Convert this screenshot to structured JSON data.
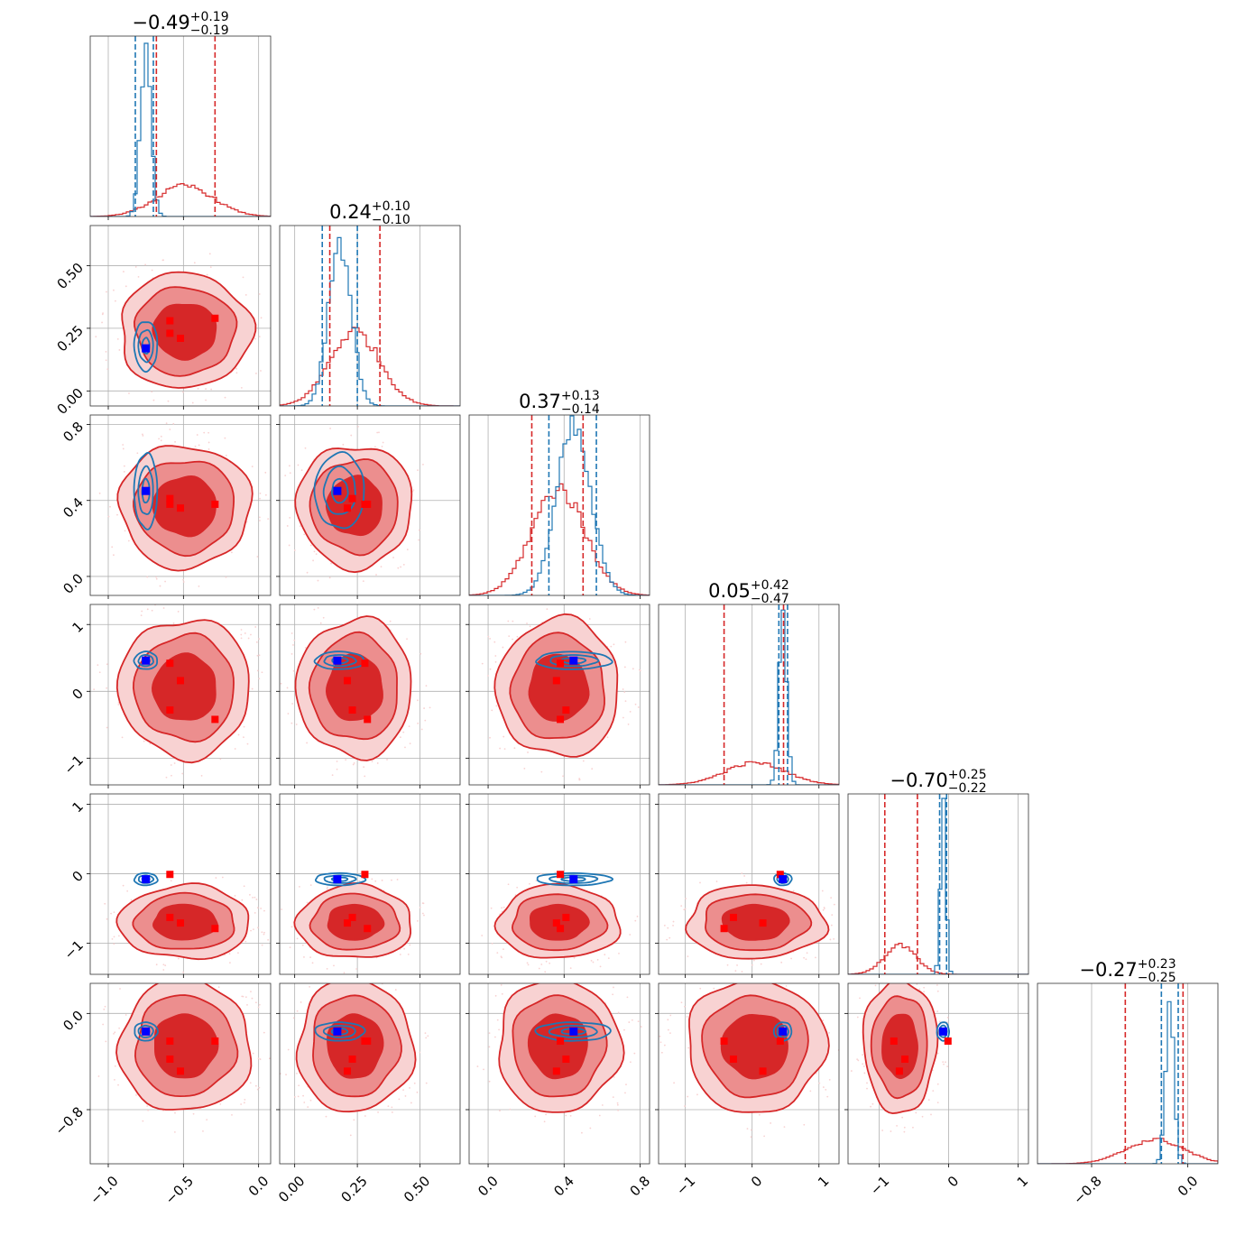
{
  "colors": {
    "red": "#d62728",
    "red_fill_inner": "#d62728",
    "red_fill_outer": "#ec8e8e",
    "red_fill_outermost": "#f8d2d2",
    "blue": "#1f77b4",
    "marker_blue": "#0000ff",
    "marker_red": "#ff0000",
    "grid": "#b0b0b0",
    "frame": "#000000"
  },
  "chart_data": {
    "type": "corner",
    "grid": true,
    "n_params": 6,
    "titles": [
      {
        "value": "−0.49",
        "plus": "+0.19",
        "minus": "−0.19"
      },
      {
        "value": "0.24",
        "plus": "+0.10",
        "minus": "−0.10"
      },
      {
        "value": "0.37",
        "plus": "+0.13",
        "minus": "−0.14"
      },
      {
        "value": "0.05",
        "plus": "+0.42",
        "minus": "−0.47"
      },
      {
        "value": "−0.70",
        "plus": "+0.25",
        "minus": "−0.22"
      },
      {
        "value": "−0.27",
        "plus": "+0.23",
        "minus": "−0.25"
      }
    ],
    "params": [
      {
        "range": [
          -1.12,
          0.08
        ],
        "ticks": [
          -1.0,
          -0.5,
          0.0
        ],
        "tick_labels": [
          "−1.0",
          "−0.5",
          "0.0"
        ],
        "red": {
          "mean": -0.49,
          "sd": 0.19,
          "q": [
            -0.68,
            -0.29
          ]
        },
        "blue": {
          "mean": -0.75,
          "sd": 0.035,
          "q": [
            -0.82,
            -0.7
          ]
        }
      },
      {
        "range": [
          -0.06,
          0.66
        ],
        "ticks": [
          0.0,
          0.25,
          0.5
        ],
        "tick_labels": [
          "0.00",
          "0.25",
          "0.50"
        ],
        "red": {
          "mean": 0.24,
          "sd": 0.1,
          "q": [
            0.14,
            0.34
          ]
        },
        "blue": {
          "mean": 0.18,
          "sd": 0.045,
          "q": [
            0.11,
            0.25
          ]
        }
      },
      {
        "range": [
          -0.1,
          0.85
        ],
        "ticks": [
          0.0,
          0.4,
          0.8
        ],
        "tick_labels": [
          "0.0",
          "0.4",
          "0.8"
        ],
        "red": {
          "mean": 0.37,
          "sd": 0.14,
          "q": [
            0.23,
            0.5
          ]
        },
        "blue": {
          "mean": 0.45,
          "sd": 0.09,
          "q": [
            0.32,
            0.57
          ]
        }
      },
      {
        "range": [
          -1.4,
          1.3
        ],
        "ticks": [
          -1,
          0,
          1
        ],
        "tick_labels": [
          "−1",
          "0",
          "1"
        ],
        "red": {
          "mean": 0.05,
          "sd": 0.45,
          "q": [
            -0.42,
            0.47
          ]
        },
        "blue": {
          "mean": 0.46,
          "sd": 0.06,
          "q": [
            0.4,
            0.53
          ]
        }
      },
      {
        "range": [
          -1.45,
          1.15
        ],
        "ticks": [
          -1,
          0,
          1
        ],
        "tick_labels": [
          "−1",
          "0",
          "1"
        ],
        "red": {
          "mean": -0.7,
          "sd": 0.23,
          "q": [
            -0.92,
            -0.45
          ]
        },
        "blue": {
          "mean": -0.08,
          "sd": 0.04,
          "q": [
            -0.13,
            -0.03
          ]
        }
      },
      {
        "range": [
          -1.25,
          0.25
        ],
        "ticks": [
          -0.8,
          0.0
        ],
        "tick_labels": [
          "−0.8",
          "0.0"
        ],
        "red": {
          "mean": -0.27,
          "sd": 0.24,
          "q": [
            -0.52,
            -0.04
          ]
        },
        "blue": {
          "mean": -0.15,
          "sd": 0.035,
          "q": [
            -0.22,
            -0.08
          ]
        }
      }
    ],
    "truth_blue": [
      -0.75,
      0.17,
      0.45,
      0.46,
      -0.08,
      -0.15
    ],
    "truth_red": [
      [
        -0.59,
        0.28,
        0.38,
        0.42,
        -0.01,
        -0.23
      ],
      [
        -0.59,
        0.23,
        0.41,
        -0.28,
        -0.63,
        -0.38
      ],
      [
        -0.52,
        0.21,
        0.36,
        0.16,
        -0.71,
        -0.48
      ],
      [
        -0.29,
        0.29,
        0.38,
        -0.42,
        -0.79,
        -0.23
      ]
    ]
  }
}
